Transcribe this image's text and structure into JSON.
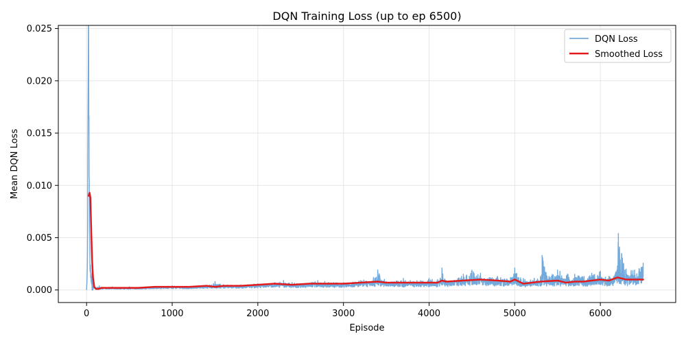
{
  "chart_data": {
    "type": "line",
    "title": "DQN Training Loss (up to ep 6500)",
    "xlabel": "Episode",
    "ylabel": "Mean DQN Loss",
    "xlim": [
      -330,
      6880
    ],
    "ylim": [
      -0.0012,
      0.0253
    ],
    "xticks": [
      0,
      1000,
      2000,
      3000,
      4000,
      5000,
      6000
    ],
    "xtick_labels": [
      "0",
      "1000",
      "2000",
      "3000",
      "4000",
      "5000",
      "6000"
    ],
    "yticks": [
      0.0,
      0.005,
      0.01,
      0.015,
      0.02,
      0.025
    ],
    "ytick_labels": [
      "0.000",
      "0.005",
      "0.010",
      "0.015",
      "0.020",
      "0.025"
    ],
    "grid": true,
    "legend_position": "top-right",
    "colors": {
      "raw": "#5b9bd5",
      "smoothed": "#e31a1c"
    },
    "series": [
      {
        "name": "DQN Loss",
        "style": "thin blue, alpha 0.8, noisy",
        "x": [
          0,
          5,
          10,
          15,
          20,
          25,
          30,
          35,
          40,
          50,
          60,
          80,
          100,
          150,
          200,
          300,
          400,
          500,
          600,
          800,
          1000,
          1200,
          1400,
          1500,
          1600,
          1800,
          2000,
          2200,
          2300,
          2500,
          2700,
          3000,
          3200,
          3350,
          3400,
          3500,
          3700,
          3900,
          4000,
          4100,
          4150,
          4200,
          4400,
          4500,
          4600,
          4800,
          4950,
          5000,
          5100,
          5300,
          5320,
          5400,
          5500,
          5700,
          5900,
          6000,
          6100,
          6200,
          6210,
          6300,
          6400,
          6500
        ],
        "y": [
          0.0,
          0.001,
          0.0026,
          0.0135,
          0.024,
          0.0228,
          0.0125,
          0.0055,
          0.0025,
          0.0012,
          0.0005,
          0.0003,
          0.0002,
          0.0004,
          0.0002,
          0.0003,
          0.0002,
          0.0003,
          0.0002,
          0.0003,
          0.0004,
          0.0003,
          0.0004,
          0.0008,
          0.0005,
          0.0005,
          0.0006,
          0.0007,
          0.0009,
          0.0006,
          0.0009,
          0.0007,
          0.0009,
          0.0012,
          0.0019,
          0.0008,
          0.0011,
          0.0009,
          0.0011,
          0.001,
          0.0021,
          0.0009,
          0.0015,
          0.0019,
          0.0016,
          0.0013,
          0.0012,
          0.0021,
          0.0011,
          0.0013,
          0.0033,
          0.0013,
          0.0019,
          0.0015,
          0.0016,
          0.0018,
          0.0013,
          0.0023,
          0.0054,
          0.002,
          0.0019,
          0.0026
        ]
      },
      {
        "name": "Smoothed Loss",
        "style": "thick red",
        "x": [
          25,
          35,
          45,
          55,
          65,
          75,
          90,
          110,
          140,
          170,
          200,
          300,
          400,
          500,
          600,
          800,
          1000,
          1200,
          1400,
          1500,
          1600,
          1800,
          2000,
          2200,
          2400,
          2600,
          2800,
          3000,
          3200,
          3400,
          3500,
          3700,
          3900,
          4100,
          4150,
          4200,
          4400,
          4600,
          4800,
          4950,
          5000,
          5100,
          5300,
          5500,
          5600,
          5700,
          5800,
          6000,
          6100,
          6200,
          6300,
          6400,
          6500
        ],
        "y": [
          0.009,
          0.0093,
          0.0088,
          0.0055,
          0.0028,
          0.0012,
          0.0003,
          0.0001,
          0.0001,
          0.0002,
          0.0002,
          0.0002,
          0.0002,
          0.0002,
          0.0002,
          0.0003,
          0.0003,
          0.0003,
          0.0004,
          0.0003,
          0.0004,
          0.0004,
          0.0005,
          0.0006,
          0.0005,
          0.0006,
          0.0006,
          0.0006,
          0.0007,
          0.0008,
          0.0007,
          0.0007,
          0.0007,
          0.0007,
          0.0009,
          0.0008,
          0.0009,
          0.001,
          0.0009,
          0.0008,
          0.001,
          0.0006,
          0.0008,
          0.0009,
          0.0007,
          0.0008,
          0.0008,
          0.001,
          0.0009,
          0.0012,
          0.001,
          0.001,
          0.001
        ]
      }
    ]
  }
}
